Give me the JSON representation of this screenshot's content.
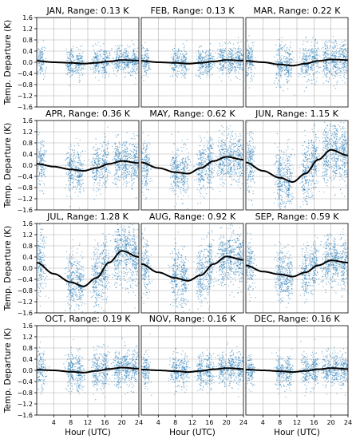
{
  "figure": {
    "ylabel": "Temp. Departure (K)",
    "xlabel": "Hour (UTC)"
  },
  "colors": {
    "points": "#1f77b4",
    "fit_line": "#000000",
    "grid": "#b0b0b0"
  },
  "chart_data": {
    "type": "scatter",
    "rows": 4,
    "cols": 3,
    "xlim": [
      0,
      24
    ],
    "ylim": [
      -1.6,
      1.6
    ],
    "xticks": [
      4,
      8,
      12,
      16,
      20,
      24
    ],
    "yticks": [
      -1.6,
      -1.2,
      -0.8,
      -0.4,
      0.0,
      0.4,
      0.8,
      1.2,
      1.6
    ],
    "ytick_labels": [
      "−1.6",
      "−1.2",
      "−0.8",
      "−0.4",
      "0.0",
      "0.4",
      "0.8",
      "1.2",
      "1.6"
    ],
    "grid": true,
    "observation_hours_approx": [
      1,
      8,
      10,
      14,
      16,
      19,
      21,
      23
    ],
    "panels": [
      {
        "month": "JAN",
        "title": "JAN, Range: 0.13 K",
        "range_k": 0.13,
        "fit": [
          [
            0,
            0.05
          ],
          [
            4,
            0.0
          ],
          [
            8,
            -0.02
          ],
          [
            11,
            -0.05
          ],
          [
            14,
            -0.02
          ],
          [
            17,
            0.03
          ],
          [
            20,
            0.08
          ],
          [
            24,
            0.06
          ]
        ],
        "spread": 0.25
      },
      {
        "month": "FEB",
        "title": "FEB, Range: 0.13 K",
        "range_k": 0.13,
        "fit": [
          [
            0,
            0.05
          ],
          [
            4,
            0.0
          ],
          [
            8,
            -0.02
          ],
          [
            11,
            -0.05
          ],
          [
            14,
            -0.02
          ],
          [
            17,
            0.03
          ],
          [
            20,
            0.08
          ],
          [
            24,
            0.06
          ]
        ],
        "spread": 0.25
      },
      {
        "month": "MAR",
        "title": "MAR, Range: 0.22 K",
        "range_k": 0.22,
        "fit": [
          [
            0,
            0.05
          ],
          [
            4,
            0.0
          ],
          [
            8,
            -0.08
          ],
          [
            11,
            -0.12
          ],
          [
            14,
            -0.05
          ],
          [
            17,
            0.05
          ],
          [
            20,
            0.1
          ],
          [
            24,
            0.08
          ]
        ],
        "spread": 0.35
      },
      {
        "month": "APR",
        "title": "APR, Range: 0.36 K",
        "range_k": 0.36,
        "fit": [
          [
            0,
            0.05
          ],
          [
            4,
            -0.05
          ],
          [
            8,
            -0.15
          ],
          [
            11,
            -0.2
          ],
          [
            14,
            -0.1
          ],
          [
            17,
            0.05
          ],
          [
            20,
            0.15
          ],
          [
            24,
            0.08
          ]
        ],
        "spread": 0.4
      },
      {
        "month": "MAY",
        "title": "MAY, Range: 0.62 K",
        "range_k": 0.62,
        "fit": [
          [
            0,
            0.1
          ],
          [
            4,
            -0.1
          ],
          [
            8,
            -0.25
          ],
          [
            11,
            -0.3
          ],
          [
            14,
            -0.1
          ],
          [
            17,
            0.15
          ],
          [
            20,
            0.3
          ],
          [
            24,
            0.2
          ]
        ],
        "spread": 0.45
      },
      {
        "month": "JUN",
        "title": "JUN, Range: 1.15 K",
        "range_k": 1.15,
        "fit": [
          [
            0,
            0.1
          ],
          [
            4,
            -0.2
          ],
          [
            8,
            -0.45
          ],
          [
            11,
            -0.6
          ],
          [
            14,
            -0.3
          ],
          [
            17,
            0.2
          ],
          [
            20,
            0.55
          ],
          [
            24,
            0.35
          ]
        ],
        "spread": 0.55
      },
      {
        "month": "JUL",
        "title": "JUL, Range: 1.28 K",
        "range_k": 1.28,
        "fit": [
          [
            0,
            0.2
          ],
          [
            4,
            -0.2
          ],
          [
            8,
            -0.5
          ],
          [
            11,
            -0.65
          ],
          [
            14,
            -0.35
          ],
          [
            17,
            0.2
          ],
          [
            20,
            0.62
          ],
          [
            24,
            0.4
          ]
        ],
        "spread": 0.55
      },
      {
        "month": "AUG",
        "title": "AUG, Range: 0.92 K",
        "range_k": 0.92,
        "fit": [
          [
            0,
            0.15
          ],
          [
            4,
            -0.15
          ],
          [
            8,
            -0.35
          ],
          [
            11,
            -0.45
          ],
          [
            14,
            -0.25
          ],
          [
            17,
            0.15
          ],
          [
            20,
            0.42
          ],
          [
            24,
            0.3
          ]
        ],
        "spread": 0.5
      },
      {
        "month": "SEP",
        "title": "SEP, Range: 0.59 K",
        "range_k": 0.59,
        "fit": [
          [
            0,
            0.1
          ],
          [
            4,
            -0.12
          ],
          [
            8,
            -0.22
          ],
          [
            11,
            -0.3
          ],
          [
            14,
            -0.15
          ],
          [
            17,
            0.1
          ],
          [
            20,
            0.28
          ],
          [
            24,
            0.2
          ]
        ],
        "spread": 0.45
      },
      {
        "month": "OCT",
        "title": "OCT, Range: 0.19 K",
        "range_k": 0.19,
        "fit": [
          [
            0,
            0.02
          ],
          [
            4,
            0.0
          ],
          [
            8,
            -0.05
          ],
          [
            11,
            -0.08
          ],
          [
            14,
            -0.02
          ],
          [
            17,
            0.05
          ],
          [
            20,
            0.1
          ],
          [
            24,
            0.06
          ]
        ],
        "spread": 0.35
      },
      {
        "month": "NOV",
        "title": "NOV, Range: 0.16 K",
        "range_k": 0.16,
        "fit": [
          [
            0,
            0.03
          ],
          [
            4,
            0.0
          ],
          [
            8,
            -0.03
          ],
          [
            11,
            -0.06
          ],
          [
            14,
            -0.02
          ],
          [
            17,
            0.04
          ],
          [
            20,
            0.08
          ],
          [
            24,
            0.05
          ]
        ],
        "spread": 0.3
      },
      {
        "month": "DEC",
        "title": "DEC, Range: 0.16 K",
        "range_k": 0.16,
        "fit": [
          [
            0,
            0.03
          ],
          [
            4,
            0.0
          ],
          [
            8,
            -0.03
          ],
          [
            11,
            -0.06
          ],
          [
            14,
            -0.02
          ],
          [
            17,
            0.04
          ],
          [
            20,
            0.08
          ],
          [
            24,
            0.05
          ]
        ],
        "spread": 0.3
      }
    ]
  }
}
